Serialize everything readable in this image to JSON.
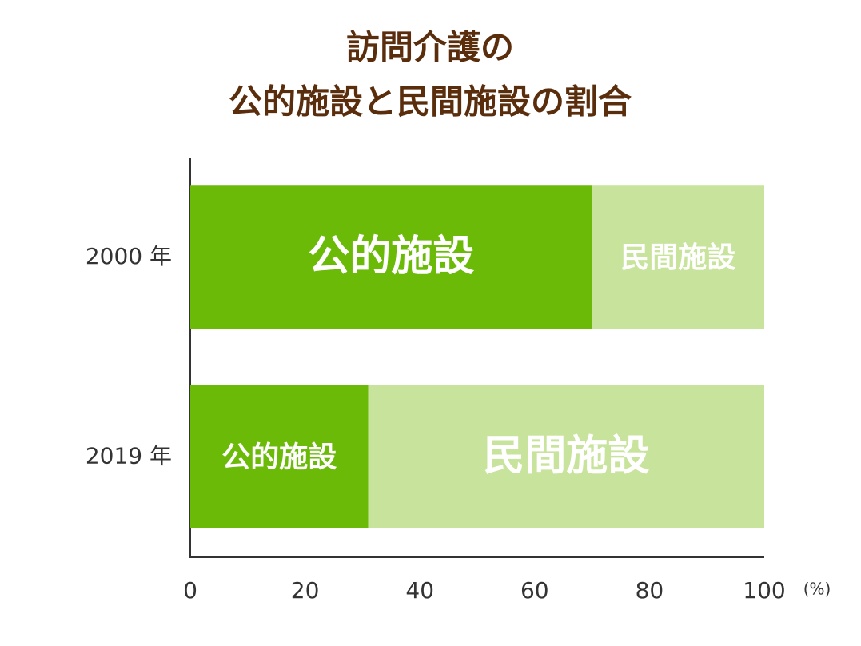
{
  "chart_data": {
    "type": "stacked-barh",
    "title": [
      "訪問介護の",
      "公的施設と民間施設の割合"
    ],
    "categories": [
      "2000 年",
      "2019 年"
    ],
    "series": [
      {
        "name": "公的施設",
        "color": "#6aba07",
        "values": [
          70,
          31
        ]
      },
      {
        "name": "民間施設",
        "color": "#c8e39c",
        "values": [
          30,
          69
        ]
      }
    ],
    "x_label": "(%)",
    "xlim": [
      0,
      100
    ],
    "xticks": [
      0,
      20,
      40,
      60,
      80,
      100
    ],
    "grid": false
  }
}
